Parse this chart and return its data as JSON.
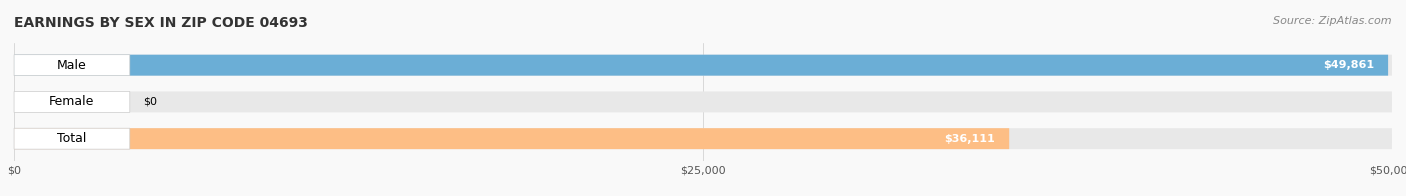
{
  "title": "EARNINGS BY SEX IN ZIP CODE 04693",
  "source": "Source: ZipAtlas.com",
  "categories": [
    "Male",
    "Female",
    "Total"
  ],
  "values": [
    49861,
    0,
    36111
  ],
  "bar_colors": [
    "#6baed6",
    "#f4a0b0",
    "#fdbe85"
  ],
  "bar_bg_color": "#eeeeee",
  "label_bg_color": "#ffffff",
  "xlim": [
    0,
    50000
  ],
  "xticks": [
    0,
    25000,
    50000
  ],
  "xtick_labels": [
    "$0",
    "$25,000",
    "$50,000"
  ],
  "bar_height": 0.55,
  "value_labels": [
    "$49,861",
    "$0",
    "$36,111"
  ],
  "title_fontsize": 10,
  "source_fontsize": 8,
  "label_fontsize": 9,
  "value_fontsize": 8,
  "tick_fontsize": 8,
  "background_color": "#f9f9f9",
  "bar_bg_alpha": 0.5
}
